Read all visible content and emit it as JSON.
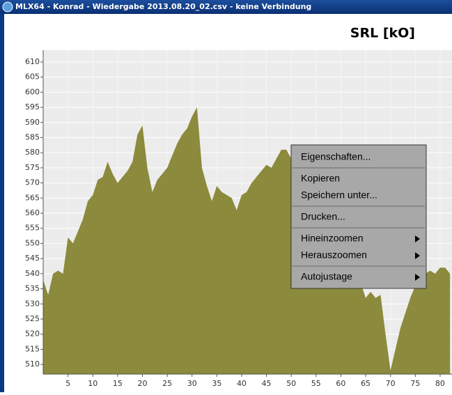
{
  "window": {
    "title": "MLX64 - Konrad  - Wiedergabe    2013.08.20_02.csv - keine Verbindung"
  },
  "chart_data": {
    "type": "area",
    "title": "SRL [kO]",
    "color": "#8c8a3c",
    "grid": true,
    "x": [
      0,
      1,
      2,
      3,
      4,
      5,
      6,
      7,
      8,
      9,
      10,
      11,
      12,
      13,
      14,
      15,
      16,
      17,
      18,
      19,
      20,
      21,
      22,
      23,
      24,
      25,
      26,
      27,
      28,
      29,
      30,
      31,
      32,
      33,
      34,
      35,
      36,
      37,
      38,
      39,
      40,
      41,
      42,
      43,
      44,
      45,
      46,
      47,
      48,
      49,
      50,
      51,
      52,
      53,
      54,
      55,
      56,
      57,
      58,
      59,
      60,
      61,
      62,
      63,
      64,
      65,
      66,
      67,
      68,
      69,
      70,
      71,
      72,
      73,
      74,
      75,
      76,
      77,
      78,
      79,
      80,
      81,
      82
    ],
    "values": [
      538,
      533,
      540,
      541,
      540,
      552,
      550,
      554,
      558,
      564,
      566,
      571,
      572,
      577,
      573,
      570,
      572,
      574,
      577,
      586,
      589,
      575,
      567,
      571,
      573,
      575,
      579,
      583,
      586,
      588,
      592,
      595,
      575,
      569,
      564,
      569,
      567,
      566,
      565,
      561,
      566,
      567,
      570,
      572,
      574,
      576,
      575,
      578,
      581,
      581,
      578,
      574,
      570,
      566,
      563,
      560,
      558,
      555,
      552,
      550,
      548,
      545,
      542,
      540,
      537,
      532,
      534,
      532,
      533,
      520,
      508,
      515,
      522,
      527,
      532,
      536,
      538,
      540,
      541,
      540,
      542,
      542,
      540
    ],
    "xlim": [
      0,
      82.4
    ],
    "ylim": [
      506.8,
      613.9
    ],
    "xticks": [
      5,
      10,
      15,
      20,
      25,
      30,
      35,
      40,
      45,
      50,
      55,
      60,
      65,
      70,
      75,
      80
    ],
    "yticks": [
      510,
      515,
      520,
      525,
      530,
      535,
      540,
      545,
      550,
      555,
      560,
      565,
      570,
      575,
      580,
      585,
      590,
      595,
      600,
      605,
      610
    ]
  },
  "context_menu": {
    "groups": [
      [
        {
          "label": "Eigenschaften...",
          "submenu": false
        }
      ],
      [
        {
          "label": "Kopieren",
          "submenu": false
        },
        {
          "label": "Speichern unter...",
          "submenu": false
        }
      ],
      [
        {
          "label": "Drucken...",
          "submenu": false
        }
      ],
      [
        {
          "label": "Hineinzoomen",
          "submenu": true
        },
        {
          "label": "Herauszoomen",
          "submenu": true
        }
      ],
      [
        {
          "label": "Autojustage",
          "submenu": true
        }
      ]
    ]
  }
}
